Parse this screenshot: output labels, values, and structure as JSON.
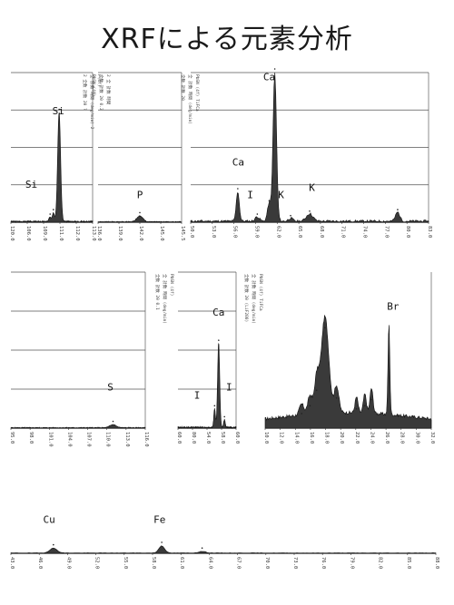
{
  "title": "XRFによる元素分析",
  "chart_data": [
    {
      "type": "area",
      "panel": "A",
      "x_ticks": [
        "120.0",
        "106.0",
        "109.0",
        "111.0",
        "112.0",
        "113.0"
      ],
      "side_text": [
        "2 全数 計数 2θ ?",
        "全 計数 時間 (deg/min) 2",
        "F(4f)"
      ],
      "labels": [
        {
          "text": "Si",
          "x": 0.58,
          "y": 0.28
        },
        {
          "text": "Si",
          "x": 0.25,
          "y": 0.77
        }
      ],
      "peaks": [
        {
          "x": 0.59,
          "h": 0.73,
          "w": 0.04
        },
        {
          "x": 0.52,
          "h": 0.06,
          "w": 0.03
        },
        {
          "x": 0.48,
          "h": 0.03,
          "w": 0.03
        }
      ]
    },
    {
      "type": "area",
      "panel": "B",
      "x_ticks": [
        "136.0",
        "139.0",
        "142.0",
        "145.0",
        "145.5"
      ],
      "side_text": [
        "PbSN (4f)",
        "全数 計数 2θ 0.2",
        "2 全 計数 時間"
      ],
      "labels": [
        {
          "text": "P",
          "x": 0.5,
          "y": 0.84
        }
      ],
      "peaks": [
        {
          "x": 0.5,
          "h": 0.04,
          "w": 0.08
        }
      ]
    },
    {
      "type": "area",
      "panel": "C",
      "x_ticks": [
        "50.0",
        "53.0",
        "56.0",
        "59.0",
        "62.0",
        "65.0",
        "68.0",
        "71.0",
        "74.0",
        "77.0",
        "80.0",
        "83.0"
      ],
      "side_text": [
        "全数 計数 2θ",
        "全 計数 時間 (deg/min)",
        "PbSN (4f)  TiFCa"
      ],
      "labels": [
        {
          "text": "Ca",
          "x": 0.33,
          "y": 0.05
        },
        {
          "text": "Ca",
          "x": 0.2,
          "y": 0.62
        },
        {
          "text": "I",
          "x": 0.25,
          "y": 0.84
        },
        {
          "text": "K",
          "x": 0.38,
          "y": 0.84
        },
        {
          "text": "K",
          "x": 0.51,
          "y": 0.79
        }
      ],
      "peaks": [
        {
          "x": 0.3535,
          "h": 1.0,
          "w": 0.016
        },
        {
          "x": 0.198,
          "h": 0.2,
          "w": 0.014
        },
        {
          "x": 0.33,
          "h": 0.12,
          "w": 0.016
        },
        {
          "x": 0.5,
          "h": 0.05,
          "w": 0.03
        },
        {
          "x": 0.87,
          "h": 0.06,
          "w": 0.02
        },
        {
          "x": 0.28,
          "h": 0.03,
          "w": 0.02
        },
        {
          "x": 0.42,
          "h": 0.02,
          "w": 0.02
        }
      ]
    },
    {
      "type": "area",
      "panel": "D",
      "x_ticks": [
        "95.0",
        "98.0",
        "101.0",
        "104.0",
        "107.0",
        "110.0",
        "113.0",
        "116.0"
      ],
      "side_text": [],
      "labels": [
        {
          "text": "S",
          "x": 0.74,
          "y": 0.76
        }
      ],
      "peaks": [
        {
          "x": 0.76,
          "h": 0.02,
          "w": 0.05
        }
      ]
    },
    {
      "type": "area",
      "panel": "E",
      "x_ticks": [
        "60.0",
        "80.0",
        "54.0",
        "58.0",
        "60.0"
      ],
      "side_text": [
        "全数 計数 2θ 0.1",
        "全 計数 時間 (deg/min)",
        "PbSN (4f)"
      ],
      "labels": [
        {
          "text": "Ca",
          "x": 0.7,
          "y": 0.28
        },
        {
          "text": "I",
          "x": 0.33,
          "y": 0.81
        },
        {
          "text": "I",
          "x": 0.88,
          "y": 0.76
        }
      ],
      "peaks": [
        {
          "x": 0.7,
          "h": 0.54,
          "w": 0.04
        },
        {
          "x": 0.63,
          "h": 0.12,
          "w": 0.03
        },
        {
          "x": 0.8,
          "h": 0.05,
          "w": 0.03
        }
      ]
    },
    {
      "type": "area",
      "panel": "F",
      "x_ticks": [
        "10.0",
        "12.0",
        "14.0",
        "16.0",
        "18.0",
        "20.0",
        "22.0",
        "24.0",
        "26.0",
        "28.0",
        "30.0",
        "32.0"
      ],
      "side_text": [
        "全数 計数 2θ (LiF200)",
        "全 計数 時間 (deg/min)",
        "PbSN (4f)  TiFCa"
      ],
      "labels": [
        {
          "text": "Br",
          "x": 0.77,
          "y": 0.24
        }
      ],
      "peaks": [
        {
          "x": 0.36,
          "h": 0.62,
          "w": 0.05
        },
        {
          "x": 0.31,
          "h": 0.22,
          "w": 0.03
        },
        {
          "x": 0.27,
          "h": 0.12,
          "w": 0.03
        },
        {
          "x": 0.43,
          "h": 0.17,
          "w": 0.03
        },
        {
          "x": 0.55,
          "h": 0.1,
          "w": 0.02
        },
        {
          "x": 0.6,
          "h": 0.12,
          "w": 0.02
        },
        {
          "x": 0.64,
          "h": 0.16,
          "w": 0.02
        },
        {
          "x": 0.745,
          "h": 0.58,
          "w": 0.012
        },
        {
          "x": 0.22,
          "h": 0.07,
          "w": 0.03
        }
      ]
    },
    {
      "type": "area",
      "panel": "G",
      "x_ticks": [
        "43.0",
        "46.0",
        "49.0",
        "52.0",
        "55.0",
        "58.0",
        "61.0",
        "64.0",
        "67.0",
        "70.0",
        "73.0",
        "76.0",
        "79.0",
        "82.0",
        "85.0",
        "88.0"
      ],
      "side_text": [],
      "labels": [
        {
          "text": "Cu",
          "x": 0.09,
          "y": 0.25
        },
        {
          "text": "Fe",
          "x": 0.35,
          "y": 0.25
        }
      ],
      "peaks": [
        {
          "x": 0.1,
          "h": 0.12,
          "w": 0.02
        },
        {
          "x": 0.355,
          "h": 0.18,
          "w": 0.015
        },
        {
          "x": 0.45,
          "h": 0.04,
          "w": 0.02
        }
      ]
    }
  ]
}
